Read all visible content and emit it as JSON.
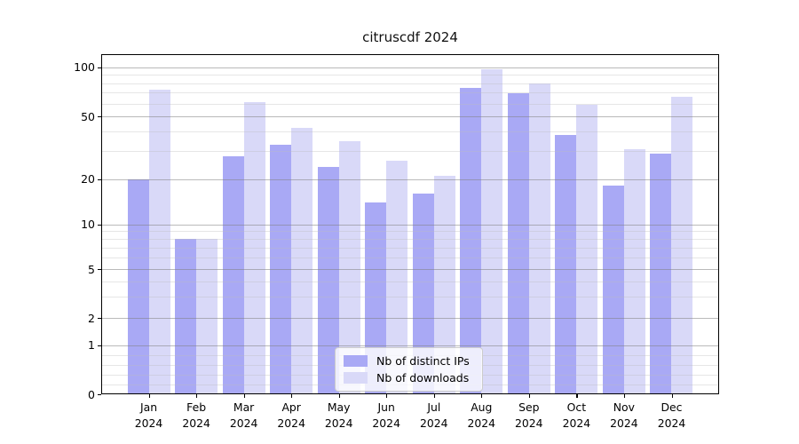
{
  "title": "citruscdf 2024",
  "chart_data": {
    "type": "bar",
    "title": "citruscdf 2024",
    "yscale": "symlog",
    "grid": "both",
    "ylim": [
      0,
      115
    ],
    "y_tick_values": [
      100,
      50,
      20,
      10,
      5,
      2,
      1,
      0
    ],
    "y_tick_labels": [
      "100",
      "50",
      "20",
      "10",
      "5",
      "2",
      "1",
      "0"
    ],
    "categories": [
      "Jan 2024",
      "Feb 2024",
      "Mar 2024",
      "Apr 2024",
      "May 2024",
      "Jun 2024",
      "Jul 2024",
      "Aug 2024",
      "Sep 2024",
      "Oct 2024",
      "Nov 2024",
      "Dec 2024"
    ],
    "x_tick_labels": [
      {
        "month": "Jan",
        "year": "2024"
      },
      {
        "month": "Feb",
        "year": "2024"
      },
      {
        "month": "Mar",
        "year": "2024"
      },
      {
        "month": "Apr",
        "year": "2024"
      },
      {
        "month": "May",
        "year": "2024"
      },
      {
        "month": "Jun",
        "year": "2024"
      },
      {
        "month": "Jul",
        "year": "2024"
      },
      {
        "month": "Aug",
        "year": "2024"
      },
      {
        "month": "Sep",
        "year": "2024"
      },
      {
        "month": "Oct",
        "year": "2024"
      },
      {
        "month": "Nov",
        "year": "2024"
      },
      {
        "month": "Dec",
        "year": "2024"
      }
    ],
    "series": [
      {
        "name": "Nb of distinct IPs",
        "color": "#a9a9f5",
        "values": [
          20,
          8,
          28,
          33,
          24,
          14,
          16,
          75,
          69,
          38,
          18,
          29
        ]
      },
      {
        "name": "Nb of downloads",
        "color": "#d9d9f8",
        "values": [
          73,
          8,
          61,
          42,
          35,
          26,
          21,
          97,
          80,
          59,
          31,
          66
        ]
      }
    ],
    "legend": {
      "position": "lower center"
    }
  }
}
